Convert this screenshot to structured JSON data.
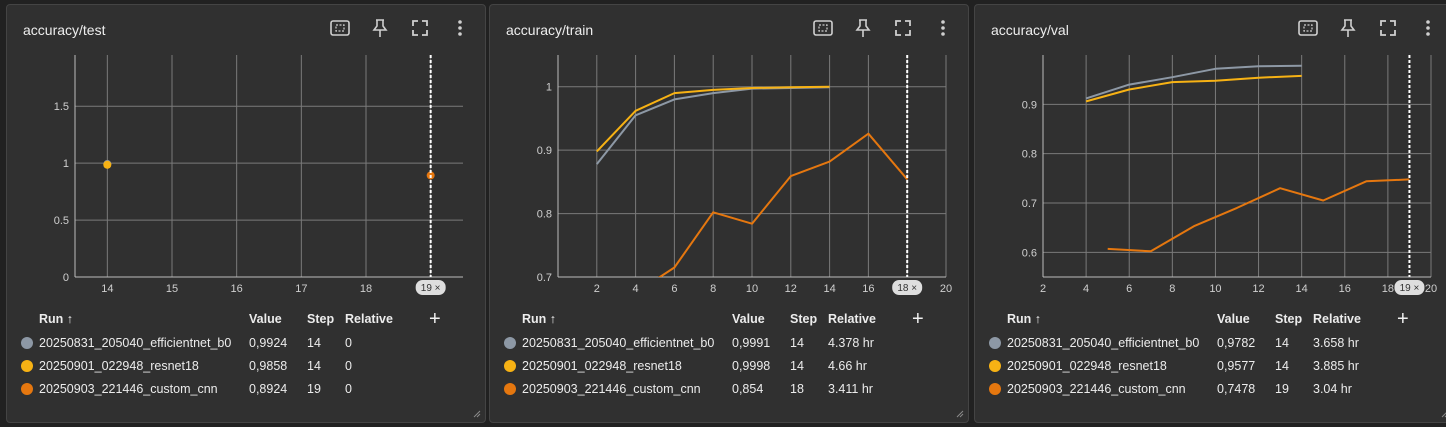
{
  "table_headers": {
    "run": "Run ↑",
    "value": "Value",
    "step": "Step",
    "relative": "Relative",
    "add": "+"
  },
  "colors": {
    "efficientnet": "#8d98a5",
    "resnet": "#f7b214",
    "custom": "#e5770f",
    "grid": "#7a7a7a",
    "axis": "#bdbdbd"
  },
  "cards": [
    {
      "title": "accuracy/test",
      "badge": "19 ×",
      "rows": [
        {
          "run": "20250831_205040_efficientnet_b0",
          "value": "0,9924",
          "step": "14",
          "relative": "0"
        },
        {
          "run": "20250901_022948_resnet18",
          "value": "0,9858",
          "step": "14",
          "relative": "0"
        },
        {
          "run": "20250903_221446_custom_cnn",
          "value": "0,8924",
          "step": "19",
          "relative": "0"
        }
      ]
    },
    {
      "title": "accuracy/train",
      "badge": "18 ×",
      "rows": [
        {
          "run": "20250831_205040_efficientnet_b0",
          "value": "0,9991",
          "step": "14",
          "relative": "4.378 hr"
        },
        {
          "run": "20250901_022948_resnet18",
          "value": "0,9998",
          "step": "14",
          "relative": "4.66 hr"
        },
        {
          "run": "20250903_221446_custom_cnn",
          "value": "0,854",
          "step": "18",
          "relative": "3.411 hr"
        }
      ]
    },
    {
      "title": "accuracy/val",
      "badge": "19 ×",
      "rows": [
        {
          "run": "20250831_205040_efficientnet_b0",
          "value": "0,9782",
          "step": "14",
          "relative": "3.658 hr"
        },
        {
          "run": "20250901_022948_resnet18",
          "value": "0,9577",
          "step": "14",
          "relative": "3.885 hr"
        },
        {
          "run": "20250903_221446_custom_cnn",
          "value": "0,7478",
          "step": "19",
          "relative": "3.04 hr"
        }
      ]
    }
  ],
  "chart_data": [
    {
      "type": "scatter",
      "title": "accuracy/test",
      "xlim": [
        13.5,
        19.5
      ],
      "ylim": [
        0,
        1.95
      ],
      "xticks": [
        14,
        15,
        16,
        17,
        18,
        19
      ],
      "yticks": [
        0,
        0.5,
        1,
        1.5
      ],
      "hover_step": 19,
      "series": [
        {
          "name": "20250831_205040_efficientnet_b0",
          "color": "efficientnet",
          "x": [
            14
          ],
          "y": [
            0.9924
          ]
        },
        {
          "name": "20250901_022948_resnet18",
          "color": "resnet",
          "x": [
            14
          ],
          "y": [
            0.9858
          ]
        },
        {
          "name": "20250903_221446_custom_cnn",
          "color": "custom",
          "x": [
            19
          ],
          "y": [
            0.8924
          ]
        }
      ]
    },
    {
      "type": "line",
      "title": "accuracy/train",
      "xlim": [
        0,
        20
      ],
      "ylim": [
        0.7,
        1.05
      ],
      "xticks": [
        2,
        4,
        6,
        8,
        10,
        12,
        14,
        16,
        18,
        20
      ],
      "yticks": [
        0.7,
        0.8,
        0.9,
        1
      ],
      "hover_step": 18,
      "series": [
        {
          "name": "20250831_205040_efficientnet_b0",
          "color": "efficientnet",
          "x": [
            2,
            4,
            6,
            8,
            10,
            12,
            14
          ],
          "y": [
            0.878,
            0.955,
            0.98,
            0.99,
            0.997,
            0.998,
            0.9991
          ]
        },
        {
          "name": "20250901_022948_resnet18",
          "color": "resnet",
          "x": [
            2,
            4,
            6,
            8,
            10,
            12,
            14
          ],
          "y": [
            0.898,
            0.962,
            0.99,
            0.995,
            0.998,
            0.999,
            0.9998
          ]
        },
        {
          "name": "20250903_221446_custom_cnn",
          "color": "custom",
          "x": [
            4,
            6,
            8,
            10,
            12,
            14,
            16,
            18
          ],
          "y": [
            0.675,
            0.715,
            0.802,
            0.784,
            0.859,
            0.882,
            0.926,
            0.854
          ]
        }
      ]
    },
    {
      "type": "line",
      "title": "accuracy/val",
      "xlim": [
        2,
        20
      ],
      "ylim": [
        0.55,
        1.0
      ],
      "xticks": [
        2,
        4,
        6,
        8,
        10,
        12,
        14,
        16,
        18,
        20
      ],
      "yticks": [
        0.6,
        0.7,
        0.8,
        0.9
      ],
      "hover_step": 19,
      "series": [
        {
          "name": "20250831_205040_efficientnet_b0",
          "color": "efficientnet",
          "x": [
            4,
            6,
            8,
            10,
            12,
            14
          ],
          "y": [
            0.912,
            0.94,
            0.955,
            0.972,
            0.977,
            0.9782
          ]
        },
        {
          "name": "20250901_022948_resnet18",
          "color": "resnet",
          "x": [
            4,
            6,
            8,
            10,
            12,
            14
          ],
          "y": [
            0.906,
            0.93,
            0.945,
            0.948,
            0.954,
            0.9577
          ]
        },
        {
          "name": "20250903_221446_custom_cnn",
          "color": "custom",
          "x": [
            5,
            7,
            9,
            11,
            13,
            15,
            17,
            19
          ],
          "y": [
            0.607,
            0.602,
            0.653,
            0.69,
            0.73,
            0.705,
            0.744,
            0.7478
          ]
        }
      ]
    }
  ]
}
